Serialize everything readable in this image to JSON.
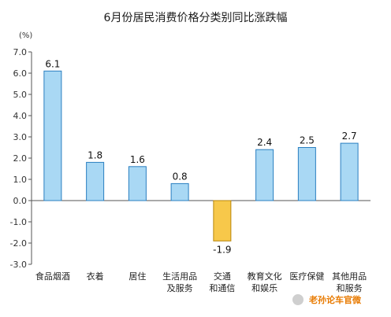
{
  "chart_data": {
    "type": "bar",
    "title": "6月份居民消费价格分类别同比涨跌幅",
    "unit": "(%)",
    "categories": [
      [
        "食品烟酒"
      ],
      [
        "衣着"
      ],
      [
        "居住"
      ],
      [
        "生活用品",
        "及服务"
      ],
      [
        "交通",
        "和通信"
      ],
      [
        "教育文化",
        "和娱乐"
      ],
      [
        "医疗保健"
      ],
      [
        "其他用品",
        "和服务"
      ]
    ],
    "values": [
      6.1,
      1.8,
      1.6,
      0.8,
      -1.9,
      2.4,
      2.5,
      2.7
    ],
    "value_labels": [
      "6.1",
      "1.8",
      "1.6",
      "0.8",
      "-1.9",
      "2.4",
      "2.5",
      "2.7"
    ],
    "yticks": [
      "7.0",
      "6.0",
      "5.0",
      "4.0",
      "3.0",
      "2.0",
      "1.0",
      "0.0",
      "-1.0",
      "-2.0",
      "-3.0"
    ],
    "ylim": [
      -3,
      7
    ],
    "colors": {
      "positive": "#a9d8f4",
      "positive_edge": "#2a7fc0",
      "negative": "#f7c84a",
      "negative_edge": "#b8860b",
      "axis": "#555555"
    }
  },
  "watermark": {
    "text": "老孙论车官微"
  }
}
